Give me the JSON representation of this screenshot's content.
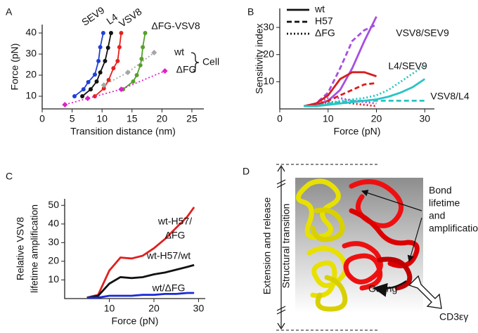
{
  "chart_data": [
    {
      "type": "line",
      "panel": "A",
      "xlabel": "Transition distance (nm)",
      "ylabel": [
        "Force (pN)"
      ],
      "xlim": [
        0,
        27
      ],
      "ylim": [
        4,
        44
      ],
      "xticks": [
        0,
        5,
        10,
        15,
        20,
        25
      ],
      "yticks": [
        10,
        20,
        30,
        40
      ],
      "series": [
        {
          "color": "#1f3fd6",
          "dash": "solid",
          "marker": "circle",
          "x": [
            5.4,
            6.9,
            7.7,
            8.8,
            9.4,
            9.7,
            10.2
          ],
          "values": [
            10,
            13.3,
            16.7,
            20.3,
            26.7,
            33.3,
            40
          ]
        },
        {
          "color": "#111111",
          "dash": "solid",
          "marker": "circle",
          "x": [
            6.7,
            8.1,
            9.1,
            9.7,
            10.5,
            11.0,
            11.5
          ],
          "values": [
            10,
            13.3,
            17,
            21.3,
            26.7,
            33,
            40
          ]
        },
        {
          "color": "#e4221e",
          "dash": "solid",
          "marker": "circle",
          "x": [
            8.8,
            10.3,
            11.1,
            11.9,
            12.6,
            12.9,
            13.2
          ],
          "values": [
            10,
            13.7,
            17.7,
            23.3,
            26.7,
            33.3,
            40
          ]
        },
        {
          "color": "#55a02a",
          "dash": "solid",
          "marker": "circle",
          "x": [
            13.5,
            15.2,
            15.8,
            16.4,
            16.6,
            16.8,
            17.2
          ],
          "values": [
            13.3,
            17,
            20,
            24.7,
            27.7,
            33.3,
            40
          ]
        },
        {
          "color": "#a6a6a6",
          "dash": "dotted",
          "marker": "diamond",
          "x": [
            10.3,
            14.3,
            18.7
          ],
          "values": [
            15.3,
            21.3,
            30.7
          ]
        },
        {
          "color": "#e020c8",
          "dash": "dotted",
          "marker": "diamond",
          "x": [
            3.8,
            7.6,
            13.2,
            20.5
          ],
          "values": [
            6,
            9,
            13.3,
            22
          ]
        }
      ],
      "annotations": [
        {
          "text": "SEV9",
          "color": "#1f3fd6"
        },
        {
          "text": "L4",
          "color": "#111111"
        },
        {
          "text": "VSV8",
          "color": "#e4221e"
        },
        {
          "text": "ΔFG-VSV8",
          "color": "#55a02a"
        },
        {
          "text": "wt",
          "color": "#a6a6a6"
        },
        {
          "text": "ΔFG",
          "color": "#e020c8"
        },
        {
          "text": "Cell",
          "color": "#111111"
        }
      ]
    },
    {
      "type": "line",
      "panel": "B",
      "xlabel": "Force (pN)",
      "ylabel": [
        "Sensitivity index"
      ],
      "xlim": [
        0,
        32
      ],
      "ylim": [
        0,
        37
      ],
      "xticks": [
        0,
        10,
        20,
        30
      ],
      "yticks": [
        10,
        20,
        30
      ],
      "x": [
        5,
        7.5,
        10,
        12.5,
        15,
        17.5,
        20,
        22.5,
        25,
        27.5,
        30
      ],
      "legend": [
        {
          "label": "wt",
          "dash": "solid"
        },
        {
          "label": "H57",
          "dash": "dashed"
        },
        {
          "label": "ΔFG",
          "dash": "dotted"
        }
      ],
      "series": [
        {
          "color": "#a64fe0",
          "dash": "solid",
          "values": [
            1,
            1.5,
            3,
            7,
            15,
            25,
            34,
            null,
            null,
            null,
            null
          ]
        },
        {
          "color": "#a64fe0",
          "dash": "dashed",
          "values": [
            1,
            2,
            6,
            15,
            25,
            29,
            31,
            null,
            null,
            null,
            null
          ]
        },
        {
          "color": "#a64fe0",
          "dash": "dotted",
          "values": [
            1,
            2,
            4,
            4,
            3,
            2.5,
            2,
            null,
            null,
            null,
            null
          ]
        },
        {
          "color": "#d81d1d",
          "dash": "solid",
          "values": [
            1,
            2,
            5,
            11,
            13.5,
            13.5,
            12,
            null,
            null,
            null,
            null
          ]
        },
        {
          "color": "#d81d1d",
          "dash": "dashed",
          "values": [
            1,
            1.5,
            3,
            5,
            7,
            9,
            9.5,
            null,
            null,
            null,
            null
          ]
        },
        {
          "color": "#d81d1d",
          "dash": "dotted",
          "values": [
            1,
            1.5,
            2.5,
            2.5,
            2,
            1.5,
            1,
            null,
            null,
            null,
            null
          ]
        },
        {
          "color": "#29c4c4",
          "dash": "solid",
          "values": [
            1,
            1,
            1.5,
            2,
            2.5,
            3,
            3.5,
            4.5,
            6,
            8,
            11
          ]
        },
        {
          "color": "#29c4c4",
          "dash": "dashed",
          "values": [
            1,
            1,
            2,
            2.5,
            3,
            3,
            3,
            3,
            3,
            3,
            3
          ]
        },
        {
          "color": "#29c4c4",
          "dash": "dotted",
          "values": [
            1,
            1,
            2,
            3,
            3.5,
            4,
            5,
            7,
            10,
            13,
            16
          ]
        }
      ],
      "annotations": [
        {
          "text": "VSV8/SEV9",
          "color": "#a64fe0"
        },
        {
          "text": "L4/SEV9",
          "color": "#d81d1d"
        },
        {
          "text": "VSV8/L4",
          "color": "#29c4c4"
        }
      ]
    },
    {
      "type": "line",
      "panel": "C",
      "xlabel": "Force (pN)",
      "ylabel": [
        "Relative VSV8",
        "lifetime amplification"
      ],
      "xlim": [
        0,
        31.5
      ],
      "ylim": [
        0,
        53.5
      ],
      "xticks": [
        10,
        20,
        30
      ],
      "yticks": [
        10,
        20,
        30,
        40,
        50
      ],
      "x": [
        5,
        7.5,
        10,
        12.5,
        15,
        17.5,
        20,
        22.5,
        25,
        27.5,
        29
      ],
      "series": [
        {
          "color": "#e02020",
          "dash": "solid",
          "values": [
            0.5,
            2,
            15,
            22,
            21.5,
            23,
            27,
            32,
            38,
            44,
            49
          ]
        },
        {
          "color": "#111111",
          "dash": "solid",
          "values": [
            0.5,
            1.5,
            8,
            11.5,
            11,
            11.5,
            13,
            14,
            15.5,
            17,
            18
          ]
        },
        {
          "color": "#1a2ad8",
          "dash": "solid",
          "values": [
            0.5,
            0.5,
            1.5,
            1.5,
            1.5,
            2,
            2,
            2.5,
            2.5,
            3,
            3
          ]
        }
      ],
      "annotations": [
        {
          "text": [
            "wt-H57/",
            "ΔFG"
          ],
          "color": "#e02020"
        },
        {
          "text": "wt-H57/wt",
          "color": "#111111"
        },
        {
          "text": "wt/ΔFG",
          "color": "#1a2ad8"
        }
      ]
    }
  ],
  "diagram": {
    "panel": "D",
    "side_labels": [
      "Extension and release",
      "Structural transition"
    ],
    "bond_label": [
      "Bond",
      "lifetime",
      "and",
      "amplification"
    ],
    "gating_label": "Gating",
    "partner_label": "CD3εγ"
  }
}
